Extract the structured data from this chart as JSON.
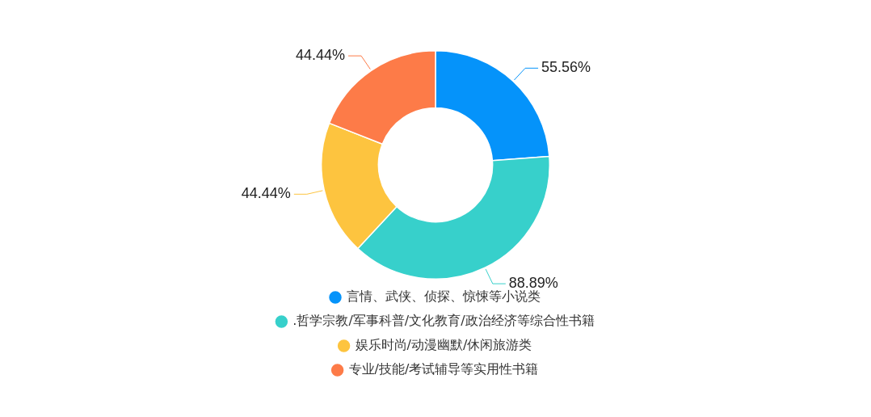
{
  "chart_data": {
    "type": "donut",
    "categories": [
      "言情、武侠、侦探、惊悚等小说类",
      ".哲学宗教/军事科普/文化教育/政治经济等综合性书籍",
      "娱乐时尚/动漫幽默/休闲旅游类",
      "专业/技能/考试辅导等实用性书籍"
    ],
    "values": [
      55.56,
      88.89,
      44.44,
      44.44
    ],
    "value_labels": [
      "55.56%",
      "88.89%",
      "44.44%",
      "44.44%"
    ],
    "colors": [
      "#0593fa",
      "#37d0cb",
      "#fdc43f",
      "#fd7b48"
    ],
    "legend": "bottom"
  }
}
